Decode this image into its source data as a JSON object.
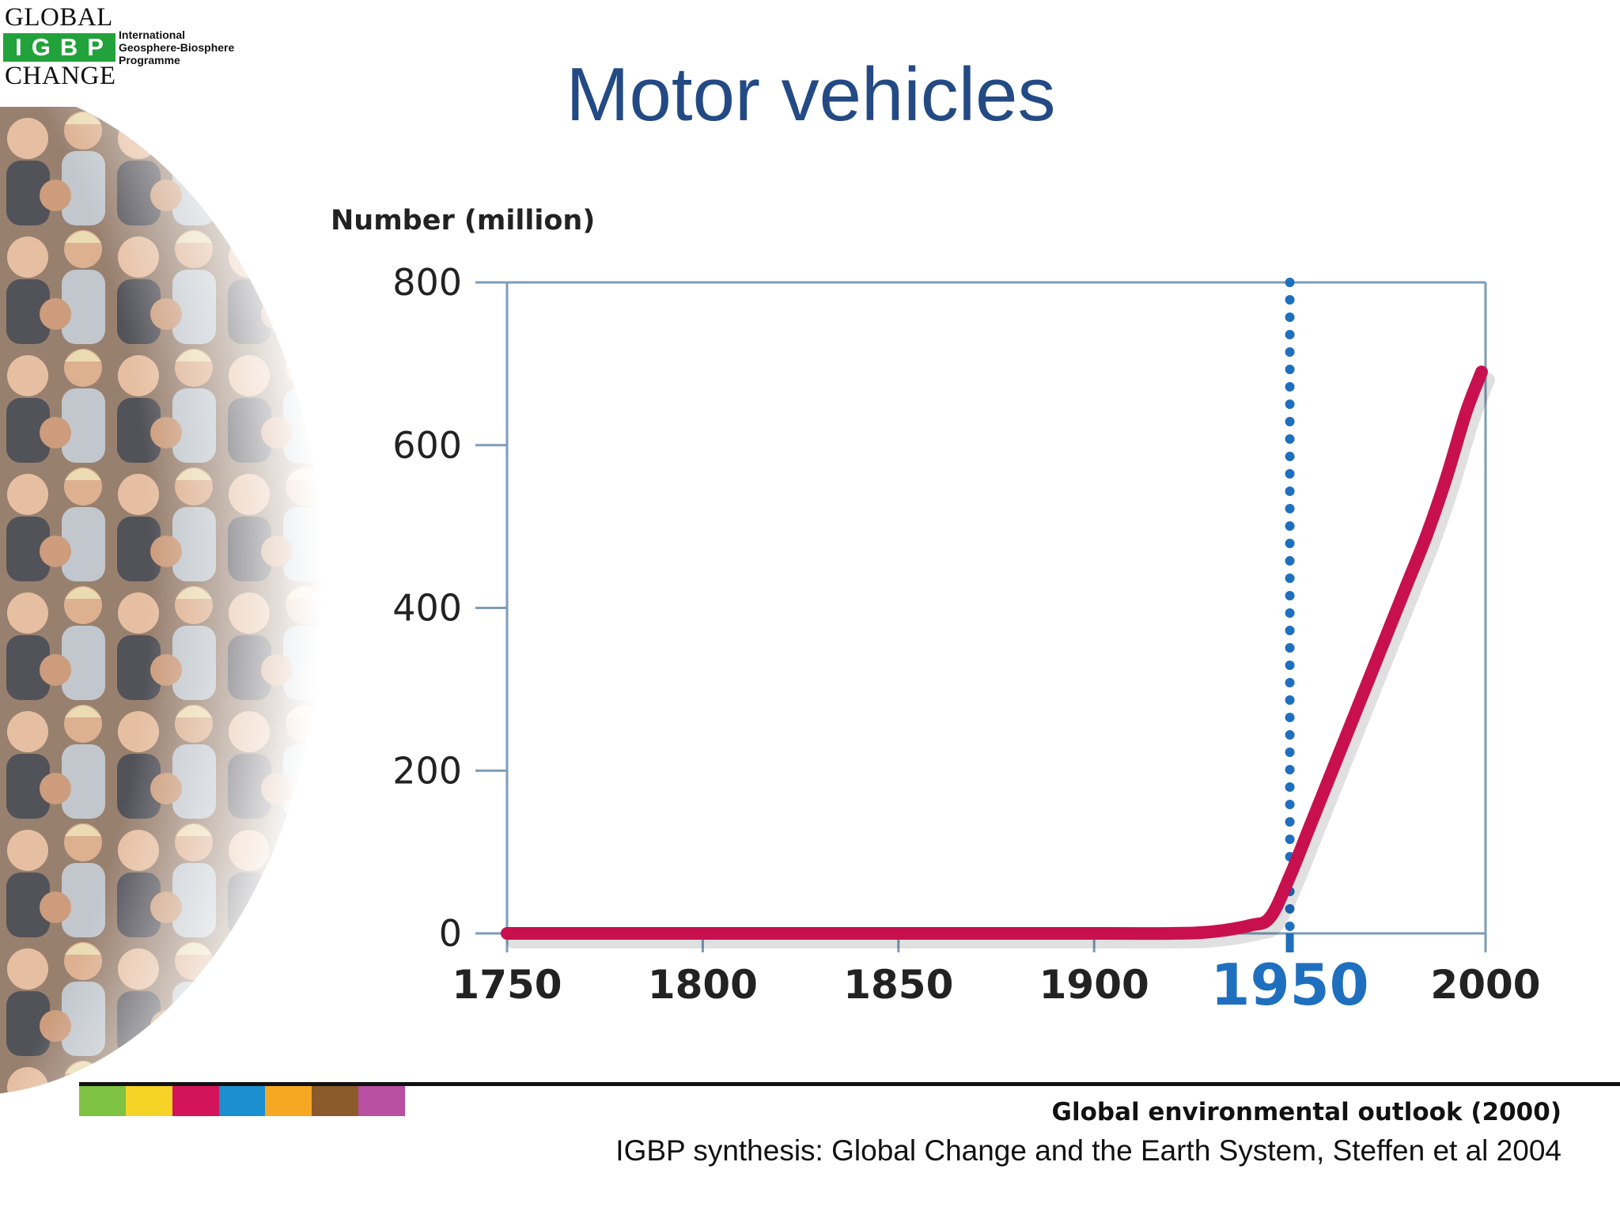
{
  "logo": {
    "line1": "GLOBAL",
    "badge": "IGBP",
    "line3": "CHANGE",
    "sub1": "International",
    "sub2": "Geosphere-Biosphere",
    "sub3": "Programme",
    "color": "#22a23a"
  },
  "title": "Motor vehicles",
  "chart_data": {
    "type": "line",
    "title": "Motor vehicles",
    "ylabel": "Number (million)",
    "xlabel": "",
    "xlim": [
      1750,
      2000
    ],
    "ylim": [
      0,
      800
    ],
    "x_ticks": [
      1750,
      1800,
      1850,
      1900,
      1950,
      2000
    ],
    "y_ticks": [
      0,
      200,
      400,
      600,
      800
    ],
    "highlight_x": 1950,
    "grid": false,
    "series": [
      {
        "color": "#c8104f",
        "points": [
          [
            1750,
            0
          ],
          [
            1800,
            0
          ],
          [
            1850,
            0
          ],
          [
            1900,
            0
          ],
          [
            1920,
            0
          ],
          [
            1930,
            2
          ],
          [
            1940,
            10
          ],
          [
            1945,
            20
          ],
          [
            1950,
            70
          ],
          [
            1955,
            130
          ],
          [
            1960,
            190
          ],
          [
            1965,
            250
          ],
          [
            1970,
            310
          ],
          [
            1975,
            370
          ],
          [
            1980,
            430
          ],
          [
            1985,
            490
          ],
          [
            1990,
            560
          ],
          [
            1995,
            640
          ],
          [
            1999,
            690
          ]
        ]
      }
    ],
    "marker_color": "#1f6fbf"
  },
  "source": {
    "line1": "Global environmental outlook (2000)",
    "line2": "IGBP synthesis: Global Change and the Earth System, Steffen et al 2004"
  },
  "strip_colors": [
    "#7dc242",
    "#f5d327",
    "#d4145a",
    "#1b8fd0",
    "#f7a823",
    "#8b5a2b",
    "#b84fa0"
  ]
}
